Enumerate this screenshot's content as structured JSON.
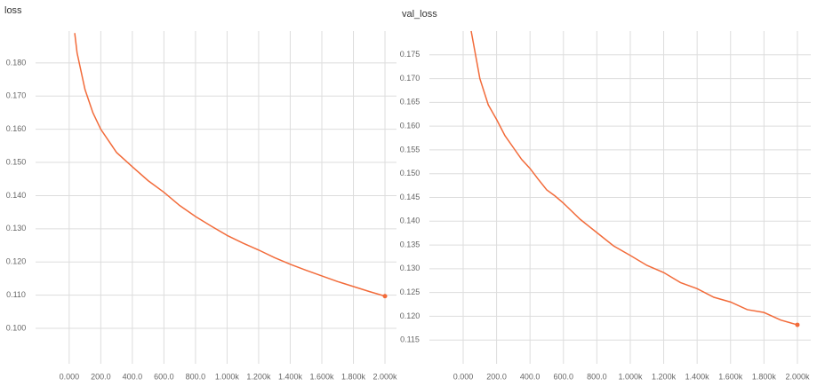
{
  "chart_data": [
    {
      "type": "line",
      "title": "loss",
      "x": [
        35,
        50,
        100,
        150,
        200,
        300,
        400,
        500,
        600,
        700,
        800,
        900,
        1000,
        1100,
        1200,
        1300,
        1400,
        1500,
        1600,
        1700,
        1800,
        1900,
        2000
      ],
      "series": [
        {
          "name": "loss",
          "color": "#f26b3a",
          "values": [
            0.189,
            0.183,
            0.172,
            0.165,
            0.16,
            0.153,
            0.1487,
            0.1445,
            0.141,
            0.137,
            0.1337,
            0.1308,
            0.128,
            0.1257,
            0.1236,
            0.1213,
            0.1193,
            0.1175,
            0.1158,
            0.1141,
            0.1126,
            0.1111,
            0.1097
          ]
        }
      ],
      "xlim": [
        -213,
        2073
      ],
      "ylim": [
        0.0893,
        0.1896
      ],
      "xticks": [
        {
          "value": 0,
          "label": "0.000"
        },
        {
          "value": 200,
          "label": "200.0"
        },
        {
          "value": 400,
          "label": "400.0"
        },
        {
          "value": 600,
          "label": "600.0"
        },
        {
          "value": 800,
          "label": "800.0"
        },
        {
          "value": 1000,
          "label": "1.000k"
        },
        {
          "value": 1200,
          "label": "1.200k"
        },
        {
          "value": 1400,
          "label": "1.400k"
        },
        {
          "value": 1600,
          "label": "1.600k"
        },
        {
          "value": 1800,
          "label": "1.800k"
        },
        {
          "value": 2000,
          "label": "2.000k"
        }
      ],
      "yticks": [
        {
          "value": 0.1,
          "label": "0.100"
        },
        {
          "value": 0.11,
          "label": "0.110"
        },
        {
          "value": 0.12,
          "label": "0.120"
        },
        {
          "value": 0.13,
          "label": "0.130"
        },
        {
          "value": 0.14,
          "label": "0.140"
        },
        {
          "value": 0.15,
          "label": "0.150"
        },
        {
          "value": 0.16,
          "label": "0.160"
        },
        {
          "value": 0.17,
          "label": "0.170"
        },
        {
          "value": 0.18,
          "label": "0.180"
        }
      ],
      "grid": true
    },
    {
      "type": "line",
      "title": "val_loss",
      "x": [
        48,
        100,
        150,
        200,
        250,
        300,
        350,
        400,
        450,
        500,
        550,
        600,
        700,
        800,
        900,
        1000,
        1100,
        1200,
        1300,
        1400,
        1500,
        1600,
        1700,
        1800,
        1900,
        2000
      ],
      "series": [
        {
          "name": "val_loss",
          "color": "#f26b3a",
          "values": [
            0.18,
            0.17,
            0.1645,
            0.1614,
            0.158,
            0.1555,
            0.153,
            0.1511,
            0.1488,
            0.1466,
            0.1453,
            0.1438,
            0.1404,
            0.1376,
            0.1348,
            0.1328,
            0.1307,
            0.1292,
            0.1271,
            0.1258,
            0.124,
            0.123,
            0.1214,
            0.1208,
            0.1192,
            0.1182
          ]
        }
      ],
      "xlim": [
        -202,
        2080
      ],
      "ylim": [
        0.11,
        0.18
      ],
      "xticks": [
        {
          "value": 0,
          "label": "0.000"
        },
        {
          "value": 200,
          "label": "200.0"
        },
        {
          "value": 400,
          "label": "400.0"
        },
        {
          "value": 600,
          "label": "600.0"
        },
        {
          "value": 800,
          "label": "800.0"
        },
        {
          "value": 1000,
          "label": "1.000k"
        },
        {
          "value": 1200,
          "label": "1.200k"
        },
        {
          "value": 1400,
          "label": "1.400k"
        },
        {
          "value": 1600,
          "label": "1.600k"
        },
        {
          "value": 1800,
          "label": "1.800k"
        },
        {
          "value": 2000,
          "label": "2.000k"
        }
      ],
      "yticks": [
        {
          "value": 0.115,
          "label": "0.115"
        },
        {
          "value": 0.12,
          "label": "0.120"
        },
        {
          "value": 0.125,
          "label": "0.125"
        },
        {
          "value": 0.13,
          "label": "0.130"
        },
        {
          "value": 0.135,
          "label": "0.135"
        },
        {
          "value": 0.14,
          "label": "0.140"
        },
        {
          "value": 0.145,
          "label": "0.145"
        },
        {
          "value": 0.15,
          "label": "0.150"
        },
        {
          "value": 0.155,
          "label": "0.155"
        },
        {
          "value": 0.16,
          "label": "0.160"
        },
        {
          "value": 0.165,
          "label": "0.165"
        },
        {
          "value": 0.17,
          "label": "0.170"
        },
        {
          "value": 0.175,
          "label": "0.175"
        }
      ],
      "grid": true
    }
  ]
}
